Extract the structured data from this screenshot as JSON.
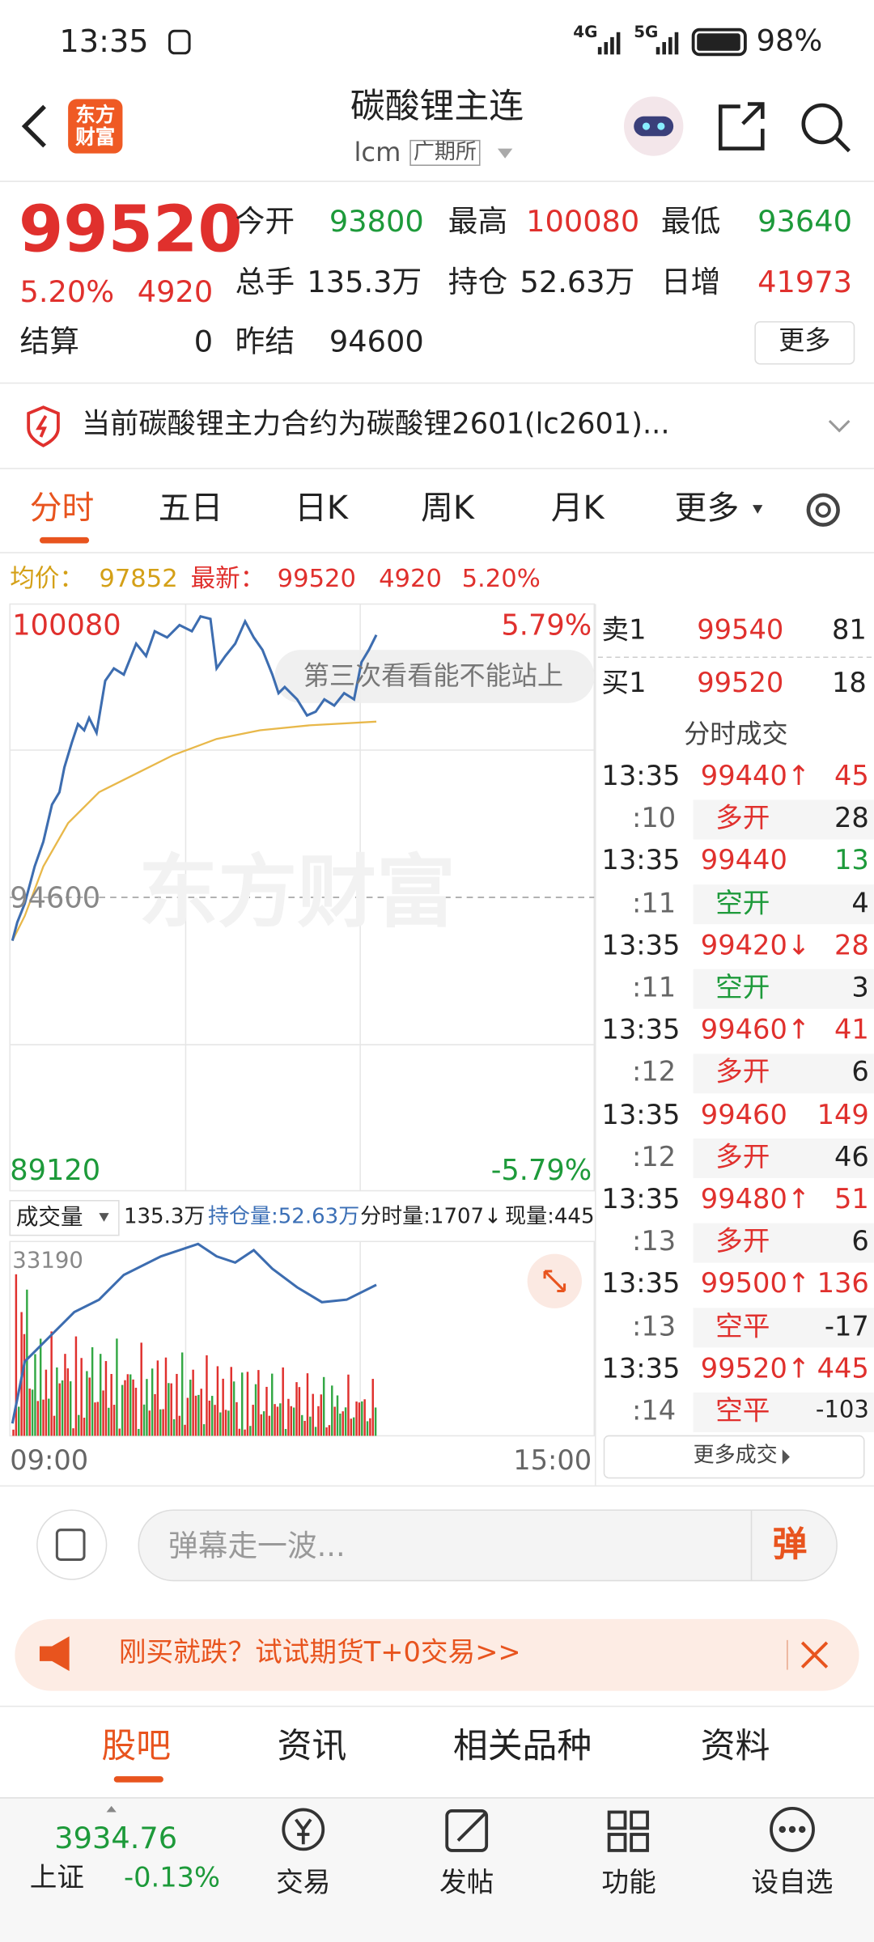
{
  "status_bar": {
    "time": "13:35",
    "signal_1": "4G",
    "signal_2": "5G",
    "battery": "98%"
  },
  "header": {
    "logo": "东方财富",
    "title": "碳酸锂主连",
    "code": "lcm",
    "exchange": "广期所"
  },
  "quote": {
    "price": "99520",
    "change_pct": "5.20%",
    "change": "4920",
    "settle_label": "结算",
    "settle": "0",
    "fields": [
      {
        "label": "今开",
        "value": "93800"
      },
      {
        "label": "最高",
        "value": "100080"
      },
      {
        "label": "最低",
        "value": "93640"
      },
      {
        "label": "总手",
        "value": "135.3万"
      },
      {
        "label": "持仓",
        "value": "52.63万"
      },
      {
        "label": "日增",
        "value": "41973"
      },
      {
        "label": "昨结",
        "value": "94600"
      }
    ],
    "more": "更多"
  },
  "notice": "当前碳酸锂主力合约为碳酸锂2601(lc2601)...",
  "tabs": [
    "分时",
    "五日",
    "日K",
    "周K",
    "月K",
    "更多"
  ],
  "info_bar": {
    "avg_label": "均价：",
    "avg": "97852",
    "last_label": "最新：",
    "last": "99520",
    "change": "4920",
    "change_pct": "5.20%"
  },
  "chart": {
    "high": "100080",
    "high_pct": "5.79%",
    "mid": "94600",
    "low": "89120",
    "low_pct": "-5.79%",
    "annotation": "第三次看看能不能站上",
    "volume_label": "成交量",
    "volume": "135.3万",
    "open_interest": "持仓量:52.63万",
    "tick_volume": "分时量:1707↓",
    "current_volume": "现量:445",
    "volume_max": "33190",
    "start_time": "09:00",
    "end_time": "15:00",
    "watermark": "东方财富"
  },
  "order_book": [
    {
      "label": "卖1",
      "price": "99540",
      "qty": "81"
    },
    {
      "label": "买1",
      "price": "99520",
      "qty": "18"
    }
  ],
  "trades": {
    "title": "分时成交",
    "rows": [
      [
        "13:35",
        "99440↑",
        "45"
      ],
      [
        ":10",
        "多开",
        "28"
      ],
      [
        "13:35",
        "99440",
        "13"
      ],
      [
        ":11",
        "空开",
        "4"
      ],
      [
        "13:35",
        "99420↓",
        "28"
      ],
      [
        ":11",
        "空开",
        "3"
      ],
      [
        "13:35",
        "99460↑",
        "41"
      ],
      [
        ":12",
        "多开",
        "6"
      ],
      [
        "13:35",
        "99460",
        "149"
      ],
      [
        ":12",
        "多开",
        "46"
      ],
      [
        "13:35",
        "99480↑",
        "51"
      ],
      [
        ":13",
        "多开",
        "6"
      ],
      [
        "13:35",
        "99500↑",
        "136"
      ],
      [
        ":13",
        "空平",
        "-17"
      ],
      [
        "13:35",
        "99520↑",
        "445"
      ],
      [
        ":14",
        "空平",
        "-103"
      ]
    ],
    "more": "更多成交"
  },
  "comment": {
    "placeholder": "弹幕走一波...",
    "button": "弹"
  },
  "ad": "刚买就跌？试试期货T+0交易>>",
  "section_tabs": [
    "股吧",
    "资讯",
    "相关品种",
    "资料"
  ],
  "bottom_nav": {
    "index_value": "3934.76",
    "index_name": "上证",
    "index_change": "-0.13%",
    "items": [
      "交易",
      "发帖",
      "功能",
      "设自选"
    ]
  }
}
